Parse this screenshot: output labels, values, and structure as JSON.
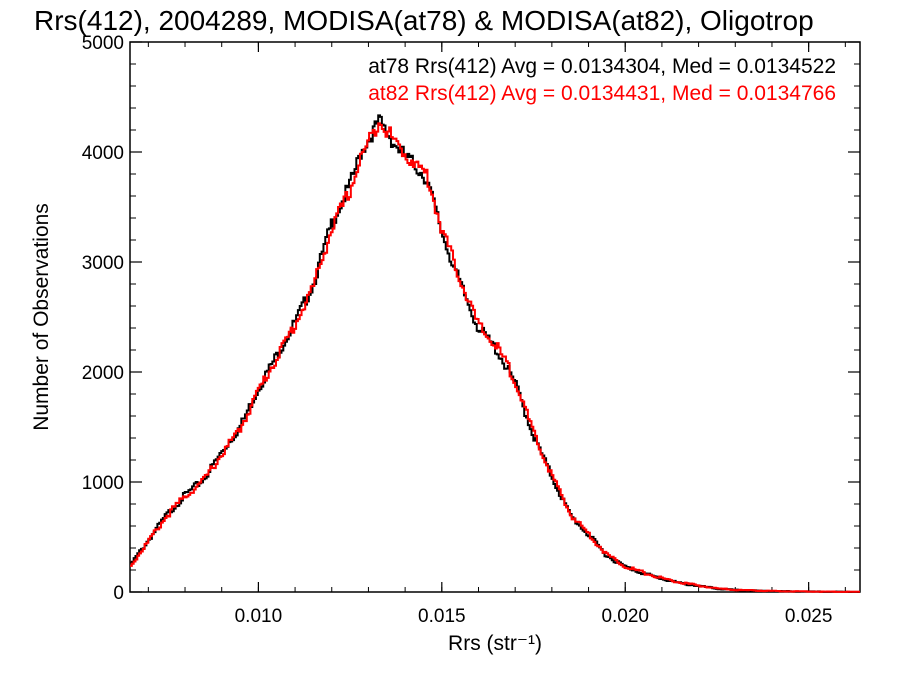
{
  "chart_data": {
    "type": "line",
    "title": "Rrs(412), 2004289, MODISA(at78) & MODISA(at82), Oligotrop",
    "xlabel": "Rrs (str⁻¹)",
    "ylabel": "Number of Observations",
    "xlim": [
      0.0065,
      0.0264
    ],
    "ylim": [
      0,
      5000
    ],
    "x_ticks": [
      0.01,
      0.015,
      0.02,
      0.025
    ],
    "x_tick_labels": [
      "0.010",
      "0.015",
      "0.020",
      "0.025"
    ],
    "y_ticks": [
      0,
      1000,
      2000,
      3000,
      4000,
      5000
    ],
    "y_tick_labels": [
      "0",
      "1000",
      "2000",
      "3000",
      "4000",
      "5000"
    ],
    "grid": false,
    "annotations": [
      {
        "text": "at78 Rrs(412) Avg = 0.0134304, Med = 0.0134522",
        "color": "#000000"
      },
      {
        "text": "at82 Rrs(412) Avg = 0.0134431, Med = 0.0134766",
        "color": "#ff0000"
      }
    ],
    "series": [
      {
        "color": "#000000",
        "step": true,
        "points": [
          [
            0.0065,
            240
          ],
          [
            0.007,
            470
          ],
          [
            0.0075,
            700
          ],
          [
            0.008,
            880
          ],
          [
            0.0085,
            1020
          ],
          [
            0.009,
            1270
          ],
          [
            0.0095,
            1500
          ],
          [
            0.01,
            1850
          ],
          [
            0.0105,
            2150
          ],
          [
            0.011,
            2450
          ],
          [
            0.0115,
            2800
          ],
          [
            0.012,
            3350
          ],
          [
            0.0125,
            3700
          ],
          [
            0.0128,
            4000
          ],
          [
            0.0131,
            4170
          ],
          [
            0.0133,
            4280
          ],
          [
            0.0135,
            4180
          ],
          [
            0.0137,
            4080
          ],
          [
            0.014,
            3960
          ],
          [
            0.0143,
            3870
          ],
          [
            0.0146,
            3750
          ],
          [
            0.015,
            3270
          ],
          [
            0.0155,
            2800
          ],
          [
            0.016,
            2400
          ],
          [
            0.0165,
            2200
          ],
          [
            0.017,
            1900
          ],
          [
            0.0175,
            1420
          ],
          [
            0.018,
            1050
          ],
          [
            0.0185,
            700
          ],
          [
            0.019,
            520
          ],
          [
            0.0195,
            330
          ],
          [
            0.02,
            230
          ],
          [
            0.0205,
            170
          ],
          [
            0.021,
            120
          ],
          [
            0.0215,
            80
          ],
          [
            0.022,
            55
          ],
          [
            0.0225,
            30
          ],
          [
            0.023,
            18
          ],
          [
            0.024,
            8
          ],
          [
            0.025,
            4
          ],
          [
            0.0264,
            1
          ]
        ]
      },
      {
        "color": "#ff0000",
        "step": true,
        "points": [
          [
            0.0065,
            230
          ],
          [
            0.007,
            460
          ],
          [
            0.0075,
            690
          ],
          [
            0.008,
            870
          ],
          [
            0.0085,
            1010
          ],
          [
            0.009,
            1250
          ],
          [
            0.0095,
            1480
          ],
          [
            0.01,
            1830
          ],
          [
            0.0105,
            2130
          ],
          [
            0.011,
            2430
          ],
          [
            0.0115,
            2780
          ],
          [
            0.012,
            3300
          ],
          [
            0.0125,
            3650
          ],
          [
            0.0128,
            3950
          ],
          [
            0.0131,
            4150
          ],
          [
            0.0133,
            4300
          ],
          [
            0.0135,
            4200
          ],
          [
            0.0137,
            4100
          ],
          [
            0.014,
            3980
          ],
          [
            0.0143,
            3890
          ],
          [
            0.0146,
            3780
          ],
          [
            0.015,
            3300
          ],
          [
            0.0155,
            2850
          ],
          [
            0.016,
            2420
          ],
          [
            0.0165,
            2230
          ],
          [
            0.017,
            1930
          ],
          [
            0.0175,
            1440
          ],
          [
            0.018,
            1060
          ],
          [
            0.0185,
            710
          ],
          [
            0.019,
            530
          ],
          [
            0.0195,
            340
          ],
          [
            0.02,
            235
          ],
          [
            0.0205,
            175
          ],
          [
            0.021,
            125
          ],
          [
            0.0215,
            85
          ],
          [
            0.022,
            58
          ],
          [
            0.0225,
            32
          ],
          [
            0.023,
            19
          ],
          [
            0.024,
            9
          ],
          [
            0.025,
            4
          ],
          [
            0.0264,
            1
          ]
        ]
      }
    ]
  }
}
